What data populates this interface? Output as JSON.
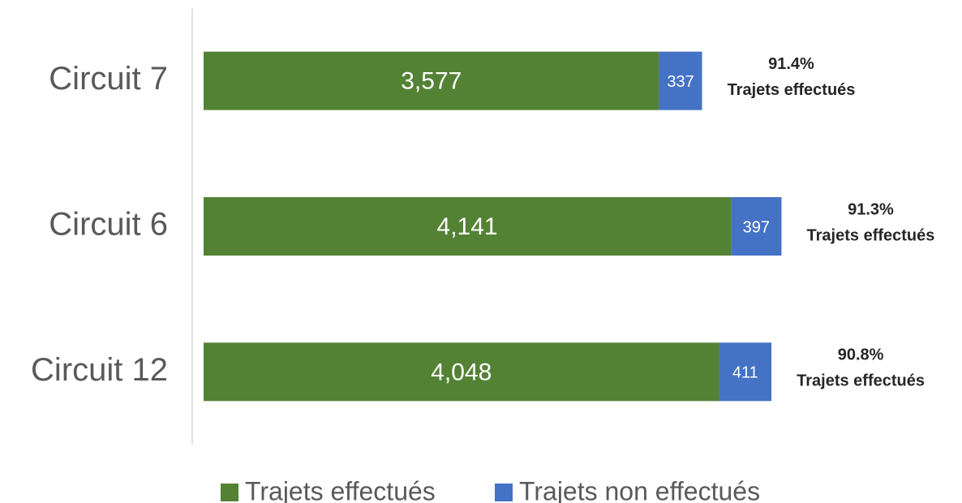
{
  "chart_data": {
    "type": "stacked-barh",
    "categories": [
      "Circuit 7",
      "Circuit 6",
      "Circuit 12"
    ],
    "series": [
      {
        "name": "Trajets effectués",
        "color": "#548235",
        "values": [
          3577,
          4141,
          4048
        ],
        "value_labels": [
          "3,577",
          "4,141",
          "4,048"
        ]
      },
      {
        "name": "Trajets non effectués",
        "color": "#4472c4",
        "values": [
          337,
          397,
          411
        ]
      }
    ],
    "annotations": [
      {
        "value": 91.4,
        "label": "91.4%",
        "text": "Trajets effectués"
      },
      {
        "value": 91.3,
        "label": "91.3%",
        "text": "Trajets effectués"
      },
      {
        "value": 90.8,
        "label": "90.8%",
        "text": "Trajets effectués"
      }
    ],
    "xlim": [
      0,
      5000
    ],
    "legend": "bottom"
  }
}
